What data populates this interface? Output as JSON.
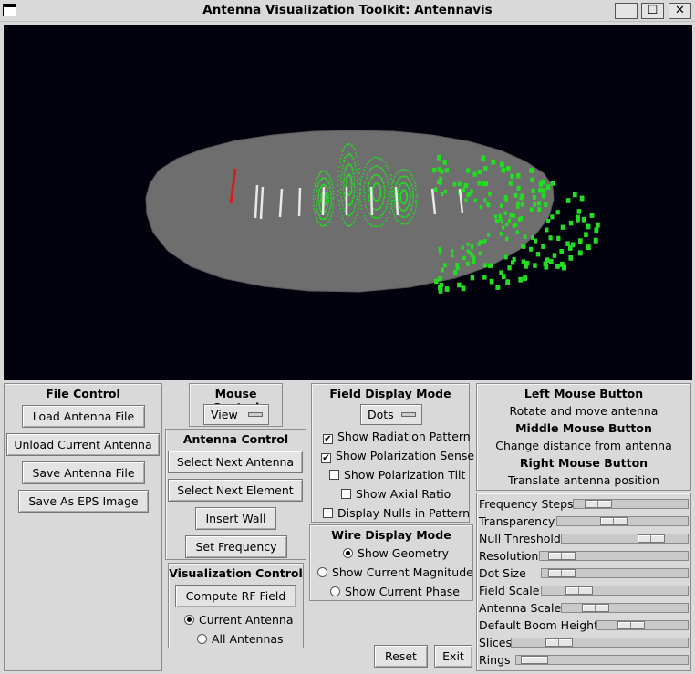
{
  "window": {
    "title": "Antenna Visualization Toolkit: Antennavis",
    "min_label": "_",
    "max_label": "☐",
    "close_label": "✕"
  },
  "file_control": {
    "title": "File Control",
    "load": "Load Antenna File",
    "unload": "Unload Current Antenna",
    "save": "Save Antenna File",
    "save_eps": "Save As EPS Image"
  },
  "mouse_control": {
    "title": "Mouse Control",
    "mode": "View"
  },
  "antenna_control": {
    "title": "Antenna Control",
    "next_antenna": "Select Next Antenna",
    "next_element": "Select Next Element",
    "insert_wall": "Insert Wall",
    "set_frequency": "Set Frequency"
  },
  "visualization_control": {
    "title": "Visualization Control",
    "compute": "Compute RF Field",
    "options": [
      {
        "label": "Current Antenna",
        "selected": true
      },
      {
        "label": "All Antennas",
        "selected": false
      }
    ]
  },
  "field_display": {
    "title": "Field Display Mode",
    "mode": "Dots",
    "options": [
      {
        "label": "Show Radiation Pattern",
        "checked": true
      },
      {
        "label": "Show Polarization Sense",
        "checked": true
      },
      {
        "label": "Show Polarization Tilt",
        "checked": false
      },
      {
        "label": "Show Axial Ratio",
        "checked": false
      },
      {
        "label": "Display Nulls in Pattern",
        "checked": false
      }
    ]
  },
  "wire_display": {
    "title": "Wire Display Mode",
    "options": [
      {
        "label": "Show Geometry",
        "selected": true
      },
      {
        "label": "Show Current Magnitude",
        "selected": false
      },
      {
        "label": "Show Current Phase",
        "selected": false
      }
    ]
  },
  "mouse_help": {
    "left_title": "Left Mouse Button",
    "left_desc": "Rotate and move antenna",
    "middle_title": "Middle Mouse Button",
    "middle_desc": "Change distance from antenna",
    "right_title": "Right Mouse Button",
    "right_desc": "Translate antenna position"
  },
  "sliders": [
    {
      "label": "Frequency Steps",
      "value": 0.13
    },
    {
      "label": "Transparency",
      "value": 0.42
    },
    {
      "label": "Null Threshold",
      "value": 0.77
    },
    {
      "label": "Resolution",
      "value": 0.07
    },
    {
      "label": "Dot Size",
      "value": 0.05
    },
    {
      "label": "Field Scale",
      "value": 0.2
    },
    {
      "label": "Antenna Scale",
      "value": 0.2
    },
    {
      "label": "Default Boom Height",
      "value": 0.32
    },
    {
      "label": "Slices",
      "value": 0.23
    },
    {
      "label": "Rings",
      "value": 0.03
    }
  ],
  "actions": {
    "reset": "Reset",
    "exit": "Exit"
  },
  "colors": {
    "viewport_bg": "#02020f",
    "ground_plane": "#6e6e6e",
    "field_dots": "#22dd22",
    "selected_element": "#cc2222",
    "elements": "#e8e8e8"
  }
}
